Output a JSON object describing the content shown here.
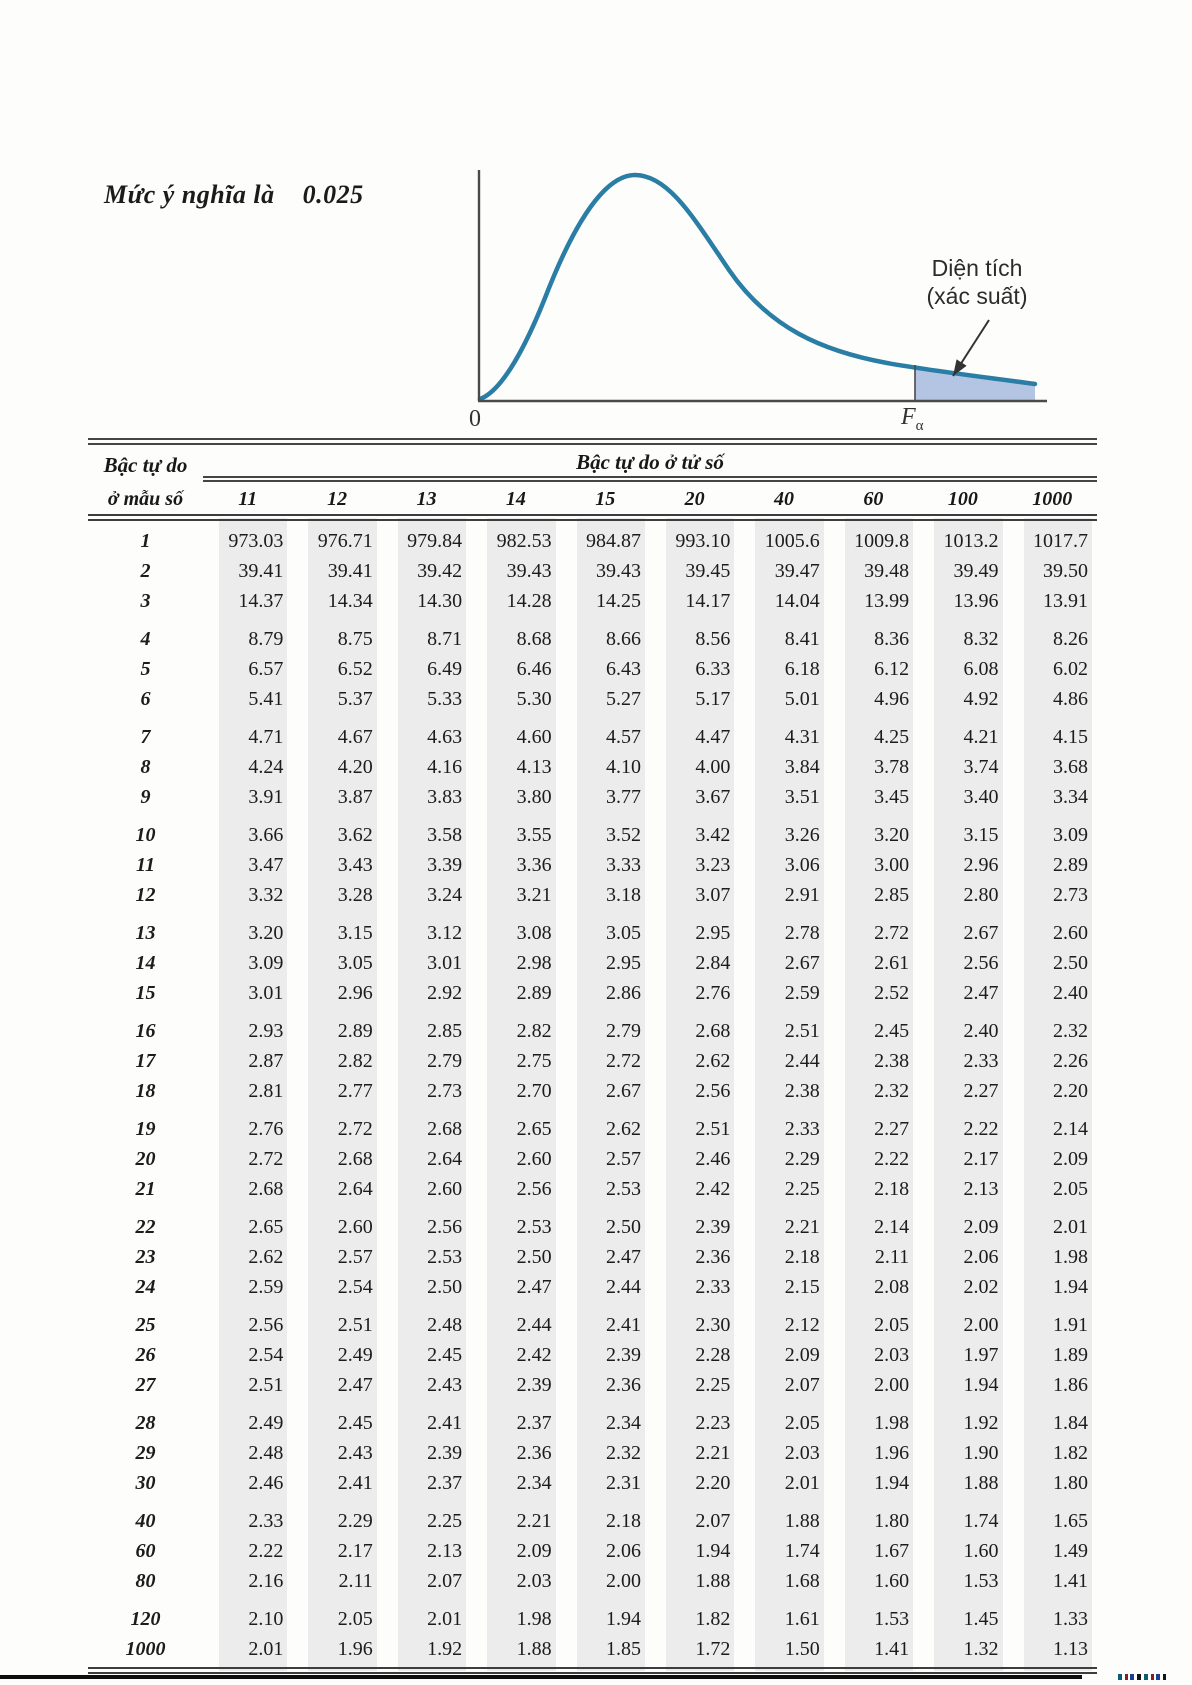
{
  "header": {
    "significance_text": "Mức ý nghĩa là",
    "significance_value": "0.025"
  },
  "figure": {
    "annotation_line1": "Diện tích",
    "annotation_line2": "(xác suất)",
    "origin_label": "0",
    "critical_label": "F",
    "critical_sub": "α",
    "curve_color": "#2a7da4",
    "shade_color": "#b3c5e3"
  },
  "chart_data": {
    "type": "area",
    "title": "",
    "description": "Schematic F-distribution density curve; shaded right-tail area beyond Fα depicts the probability (significance level 0.025)",
    "x_tick_labels": [
      "0",
      "Fα"
    ],
    "annotations": [
      "Diện tích",
      "(xác suất)"
    ],
    "shaded_region": "right tail beyond Fα",
    "tail_probability": 0.025,
    "grid": false,
    "legend": false
  },
  "table": {
    "row_header_line1": "Bậc tự do",
    "row_header_line2": "ở mẫu số",
    "col_group_header": "Bậc tự do ở tử số",
    "columns": [
      "11",
      "12",
      "13",
      "14",
      "15",
      "20",
      "40",
      "60",
      "100",
      "1000"
    ],
    "rows": [
      {
        "label": "1",
        "values": [
          "973.03",
          "976.71",
          "979.84",
          "982.53",
          "984.87",
          "993.10",
          "1005.6",
          "1009.8",
          "1013.2",
          "1017.7"
        ]
      },
      {
        "label": "2",
        "values": [
          "39.41",
          "39.41",
          "39.42",
          "39.43",
          "39.43",
          "39.45",
          "39.47",
          "39.48",
          "39.49",
          "39.50"
        ]
      },
      {
        "label": "3",
        "values": [
          "14.37",
          "14.34",
          "14.30",
          "14.28",
          "14.25",
          "14.17",
          "14.04",
          "13.99",
          "13.96",
          "13.91"
        ]
      },
      {
        "label": "4",
        "values": [
          "8.79",
          "8.75",
          "8.71",
          "8.68",
          "8.66",
          "8.56",
          "8.41",
          "8.36",
          "8.32",
          "8.26"
        ]
      },
      {
        "label": "5",
        "values": [
          "6.57",
          "6.52",
          "6.49",
          "6.46",
          "6.43",
          "6.33",
          "6.18",
          "6.12",
          "6.08",
          "6.02"
        ]
      },
      {
        "label": "6",
        "values": [
          "5.41",
          "5.37",
          "5.33",
          "5.30",
          "5.27",
          "5.17",
          "5.01",
          "4.96",
          "4.92",
          "4.86"
        ]
      },
      {
        "label": "7",
        "values": [
          "4.71",
          "4.67",
          "4.63",
          "4.60",
          "4.57",
          "4.47",
          "4.31",
          "4.25",
          "4.21",
          "4.15"
        ]
      },
      {
        "label": "8",
        "values": [
          "4.24",
          "4.20",
          "4.16",
          "4.13",
          "4.10",
          "4.00",
          "3.84",
          "3.78",
          "3.74",
          "3.68"
        ]
      },
      {
        "label": "9",
        "values": [
          "3.91",
          "3.87",
          "3.83",
          "3.80",
          "3.77",
          "3.67",
          "3.51",
          "3.45",
          "3.40",
          "3.34"
        ]
      },
      {
        "label": "10",
        "values": [
          "3.66",
          "3.62",
          "3.58",
          "3.55",
          "3.52",
          "3.42",
          "3.26",
          "3.20",
          "3.15",
          "3.09"
        ]
      },
      {
        "label": "11",
        "values": [
          "3.47",
          "3.43",
          "3.39",
          "3.36",
          "3.33",
          "3.23",
          "3.06",
          "3.00",
          "2.96",
          "2.89"
        ]
      },
      {
        "label": "12",
        "values": [
          "3.32",
          "3.28",
          "3.24",
          "3.21",
          "3.18",
          "3.07",
          "2.91",
          "2.85",
          "2.80",
          "2.73"
        ]
      },
      {
        "label": "13",
        "values": [
          "3.20",
          "3.15",
          "3.12",
          "3.08",
          "3.05",
          "2.95",
          "2.78",
          "2.72",
          "2.67",
          "2.60"
        ]
      },
      {
        "label": "14",
        "values": [
          "3.09",
          "3.05",
          "3.01",
          "2.98",
          "2.95",
          "2.84",
          "2.67",
          "2.61",
          "2.56",
          "2.50"
        ]
      },
      {
        "label": "15",
        "values": [
          "3.01",
          "2.96",
          "2.92",
          "2.89",
          "2.86",
          "2.76",
          "2.59",
          "2.52",
          "2.47",
          "2.40"
        ]
      },
      {
        "label": "16",
        "values": [
          "2.93",
          "2.89",
          "2.85",
          "2.82",
          "2.79",
          "2.68",
          "2.51",
          "2.45",
          "2.40",
          "2.32"
        ]
      },
      {
        "label": "17",
        "values": [
          "2.87",
          "2.82",
          "2.79",
          "2.75",
          "2.72",
          "2.62",
          "2.44",
          "2.38",
          "2.33",
          "2.26"
        ]
      },
      {
        "label": "18",
        "values": [
          "2.81",
          "2.77",
          "2.73",
          "2.70",
          "2.67",
          "2.56",
          "2.38",
          "2.32",
          "2.27",
          "2.20"
        ]
      },
      {
        "label": "19",
        "values": [
          "2.76",
          "2.72",
          "2.68",
          "2.65",
          "2.62",
          "2.51",
          "2.33",
          "2.27",
          "2.22",
          "2.14"
        ]
      },
      {
        "label": "20",
        "values": [
          "2.72",
          "2.68",
          "2.64",
          "2.60",
          "2.57",
          "2.46",
          "2.29",
          "2.22",
          "2.17",
          "2.09"
        ]
      },
      {
        "label": "21",
        "values": [
          "2.68",
          "2.64",
          "2.60",
          "2.56",
          "2.53",
          "2.42",
          "2.25",
          "2.18",
          "2.13",
          "2.05"
        ]
      },
      {
        "label": "22",
        "values": [
          "2.65",
          "2.60",
          "2.56",
          "2.53",
          "2.50",
          "2.39",
          "2.21",
          "2.14",
          "2.09",
          "2.01"
        ]
      },
      {
        "label": "23",
        "values": [
          "2.62",
          "2.57",
          "2.53",
          "2.50",
          "2.47",
          "2.36",
          "2.18",
          "2.11",
          "2.06",
          "1.98"
        ]
      },
      {
        "label": "24",
        "values": [
          "2.59",
          "2.54",
          "2.50",
          "2.47",
          "2.44",
          "2.33",
          "2.15",
          "2.08",
          "2.02",
          "1.94"
        ]
      },
      {
        "label": "25",
        "values": [
          "2.56",
          "2.51",
          "2.48",
          "2.44",
          "2.41",
          "2.30",
          "2.12",
          "2.05",
          "2.00",
          "1.91"
        ]
      },
      {
        "label": "26",
        "values": [
          "2.54",
          "2.49",
          "2.45",
          "2.42",
          "2.39",
          "2.28",
          "2.09",
          "2.03",
          "1.97",
          "1.89"
        ]
      },
      {
        "label": "27",
        "values": [
          "2.51",
          "2.47",
          "2.43",
          "2.39",
          "2.36",
          "2.25",
          "2.07",
          "2.00",
          "1.94",
          "1.86"
        ]
      },
      {
        "label": "28",
        "values": [
          "2.49",
          "2.45",
          "2.41",
          "2.37",
          "2.34",
          "2.23",
          "2.05",
          "1.98",
          "1.92",
          "1.84"
        ]
      },
      {
        "label": "29",
        "values": [
          "2.48",
          "2.43",
          "2.39",
          "2.36",
          "2.32",
          "2.21",
          "2.03",
          "1.96",
          "1.90",
          "1.82"
        ]
      },
      {
        "label": "30",
        "values": [
          "2.46",
          "2.41",
          "2.37",
          "2.34",
          "2.31",
          "2.20",
          "2.01",
          "1.94",
          "1.88",
          "1.80"
        ]
      },
      {
        "label": "40",
        "values": [
          "2.33",
          "2.29",
          "2.25",
          "2.21",
          "2.18",
          "2.07",
          "1.88",
          "1.80",
          "1.74",
          "1.65"
        ]
      },
      {
        "label": "60",
        "values": [
          "2.22",
          "2.17",
          "2.13",
          "2.09",
          "2.06",
          "1.94",
          "1.74",
          "1.67",
          "1.60",
          "1.49"
        ]
      },
      {
        "label": "80",
        "values": [
          "2.16",
          "2.11",
          "2.07",
          "2.03",
          "2.00",
          "1.88",
          "1.68",
          "1.60",
          "1.53",
          "1.41"
        ]
      },
      {
        "label": "120",
        "values": [
          "2.10",
          "2.05",
          "2.01",
          "1.98",
          "1.94",
          "1.82",
          "1.61",
          "1.53",
          "1.45",
          "1.33"
        ]
      },
      {
        "label": "1000",
        "values": [
          "2.01",
          "1.96",
          "1.92",
          "1.88",
          "1.85",
          "1.72",
          "1.50",
          "1.41",
          "1.32",
          "1.13"
        ]
      }
    ]
  }
}
